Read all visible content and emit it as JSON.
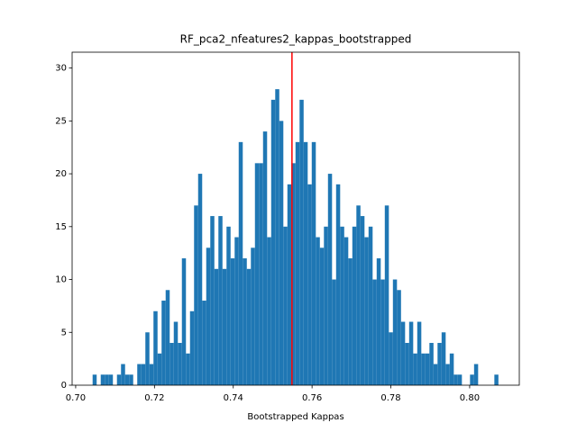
{
  "chart_data": {
    "type": "histogram",
    "title": "RF_pca2_nfeatures2_kappas_bootstrapped",
    "x_label": "Bootstrapped Kappas",
    "color": "#1f77b4",
    "bins": [
      0.7043,
      0.70533,
      0.70636,
      0.70739,
      0.70842,
      0.70945,
      0.71048,
      0.71151,
      0.71254,
      0.71357,
      0.7146,
      0.71563,
      0.71666,
      0.71769,
      0.71872,
      0.71975,
      0.72078,
      0.72181,
      0.72284,
      0.72387,
      0.7249,
      0.72593,
      0.72696,
      0.72799,
      0.72902,
      0.73005,
      0.73108,
      0.73211,
      0.73314,
      0.73417,
      0.7352,
      0.73623,
      0.73726,
      0.73829,
      0.73932,
      0.74035,
      0.74138,
      0.74241,
      0.74344,
      0.74447,
      0.7455,
      0.74653,
      0.74756,
      0.74859,
      0.74962,
      0.75065,
      0.75168,
      0.75271,
      0.75374,
      0.75477,
      0.7558,
      0.75683,
      0.75786,
      0.75889,
      0.75992,
      0.76095,
      0.76198,
      0.76301,
      0.76404,
      0.76507,
      0.7661,
      0.76713,
      0.76816,
      0.76919,
      0.77022,
      0.77125,
      0.77228,
      0.77331,
      0.77434,
      0.77537,
      0.7764,
      0.77743,
      0.77846,
      0.77949,
      0.78052,
      0.78155,
      0.78258,
      0.78361,
      0.78464,
      0.78567,
      0.7867,
      0.78773,
      0.78876,
      0.78979,
      0.79082,
      0.79185,
      0.79288,
      0.79391,
      0.79494,
      0.79597,
      0.797,
      0.79803,
      0.79906,
      0.80009,
      0.80112,
      0.80215,
      0.80318,
      0.80421,
      0.80524,
      0.80627,
      0.8073
    ],
    "values": [
      1,
      0,
      1,
      1,
      1,
      0,
      1,
      2,
      1,
      1,
      0,
      2,
      2,
      5,
      2,
      7,
      3,
      8,
      9,
      4,
      6,
      4,
      12,
      3,
      7,
      17,
      20,
      8,
      13,
      16,
      11,
      16,
      11,
      15,
      12,
      14,
      23,
      12,
      11,
      13,
      21,
      21,
      24,
      14,
      27,
      28,
      25,
      15,
      19,
      21,
      23,
      27,
      23,
      19,
      23,
      14,
      13,
      15,
      20,
      10,
      19,
      15,
      14,
      12,
      15,
      17,
      16,
      14,
      15,
      10,
      12,
      10,
      17,
      5,
      10,
      9,
      6,
      4,
      6,
      3,
      6,
      3,
      3,
      4,
      2,
      4,
      5,
      2,
      3,
      1,
      1,
      0,
      0,
      1,
      2,
      0,
      0,
      0,
      0,
      1
    ],
    "vline": {
      "value": 0.7549,
      "color": "#ff0000"
    },
    "xlim": [
      0.6991,
      0.8126
    ],
    "ylim": [
      0,
      31.5
    ],
    "xticks": [
      {
        "value": 0.7,
        "label": "0.70"
      },
      {
        "value": 0.72,
        "label": "0.72"
      },
      {
        "value": 0.74,
        "label": "0.74"
      },
      {
        "value": 0.76,
        "label": "0.76"
      },
      {
        "value": 0.78,
        "label": "0.78"
      },
      {
        "value": 0.8,
        "label": "0.80"
      }
    ],
    "yticks": [
      0,
      5,
      10,
      15,
      20,
      25,
      30
    ]
  }
}
